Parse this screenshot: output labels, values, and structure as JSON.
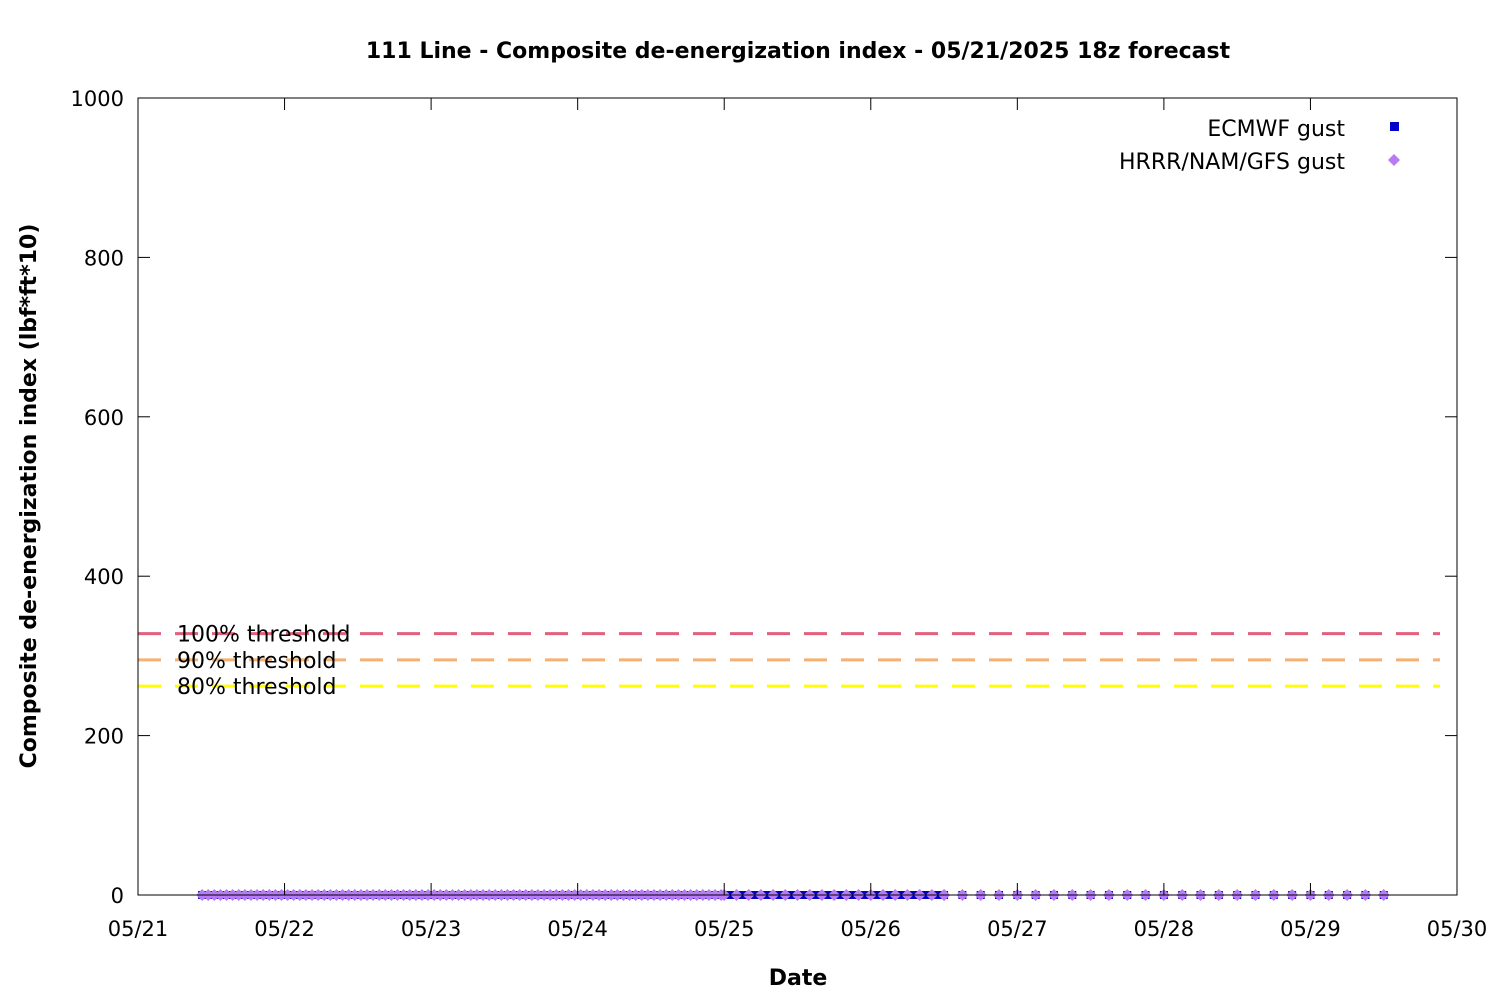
{
  "chart_data": {
    "type": "scatter",
    "title": "111 Line - Composite de-energization index - 05/21/2025 18z forecast",
    "xlabel": "Date",
    "ylabel": "Composite de-energization index (lbf*ft*10)",
    "x_axis": {
      "unit": "days",
      "range": [
        "05/21",
        "05/30"
      ],
      "tick_labels": [
        "05/21",
        "05/22",
        "05/23",
        "05/24",
        "05/25",
        "05/26",
        "05/27",
        "05/28",
        "05/29",
        "05/30"
      ]
    },
    "y_axis": {
      "ylim": [
        0,
        1000
      ],
      "tick_labels": [
        "0",
        "200",
        "400",
        "600",
        "800",
        "1000"
      ]
    },
    "grid": false,
    "legend_position": "top-right",
    "series": [
      {
        "name": "ECMWF gust",
        "color": "#0000c8",
        "marker": "square",
        "segments": [
          {
            "x_start": "05/21 10:30",
            "x_end": "05/26 12:00",
            "step_hours": 1,
            "y": 0
          },
          {
            "x_start": "05/26 12:00",
            "x_end": "05/29 12:00",
            "step_hours": 3,
            "y": 0
          }
        ]
      },
      {
        "name": "HRRR/NAM/GFS gust",
        "color": "#b77bf5",
        "marker": "diamond",
        "segments": [
          {
            "x_start": "05/21 10:30",
            "x_end": "05/25 00:00",
            "step_hours": 1,
            "y": 0
          },
          {
            "x_start": "05/25 00:00",
            "x_end": "05/26 12:00",
            "step_hours": 2,
            "y": 0
          },
          {
            "x_start": "05/26 12:00",
            "x_end": "05/29 12:00",
            "step_hours": 3,
            "y": 0
          }
        ]
      }
    ],
    "thresholds": [
      {
        "label": "100% threshold",
        "y": 328,
        "color": "#e0607e"
      },
      {
        "label": "90% threshold",
        "y": 295,
        "color": "#f5b072"
      },
      {
        "label": "80% threshold",
        "y": 262,
        "color": "#ffff00"
      }
    ]
  }
}
